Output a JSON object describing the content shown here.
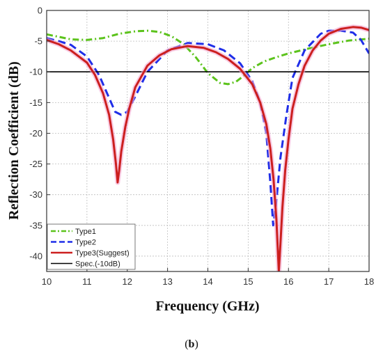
{
  "caption": {
    "open": "(",
    "label": "b",
    "close": ")"
  },
  "chart_data": {
    "type": "line",
    "title": "",
    "xlabel": "Frequency (GHz)",
    "ylabel": "Reflection Coefficient (dB)",
    "xlim": [
      10,
      18
    ],
    "ylim": [
      -42.5,
      0
    ],
    "x_ticks": [
      10,
      11,
      12,
      13,
      14,
      15,
      16,
      17,
      18
    ],
    "y_ticks": [
      0,
      -5,
      -10,
      -15,
      -20,
      -25,
      -30,
      -35,
      -40
    ],
    "grid": true,
    "legend_position": "bottom-left",
    "series": [
      {
        "name": "Type1",
        "color": "#5cc31c",
        "style": "dashdot",
        "x": [
          10,
          10.3,
          10.6,
          11,
          11.4,
          11.8,
          12.2,
          12.5,
          12.8,
          13.1,
          13.4,
          13.7,
          14,
          14.3,
          14.5,
          14.7,
          14.9,
          15.1,
          15.4,
          15.7,
          16,
          16.5,
          17,
          17.5,
          18
        ],
        "y": [
          -3.9,
          -4.3,
          -4.7,
          -4.8,
          -4.5,
          -3.8,
          -3.4,
          -3.3,
          -3.5,
          -4.2,
          -5.5,
          -7.6,
          -10.2,
          -11.8,
          -12,
          -11.6,
          -10.6,
          -9.4,
          -8.3,
          -7.6,
          -7,
          -6.2,
          -5.5,
          -4.9,
          -4.6
        ]
      },
      {
        "name": "Type2",
        "color": "#1f2ee8",
        "style": "dashed",
        "x": [
          10,
          10.3,
          10.6,
          11,
          11.3,
          11.5,
          11.7,
          11.85,
          12,
          12.2,
          12.5,
          13,
          13.5,
          14,
          14.4,
          14.8,
          15.1,
          15.3,
          15.45,
          15.55,
          15.62,
          15.7,
          15.8,
          15.95,
          16.1,
          16.4,
          16.8,
          17,
          17.3,
          17.6,
          17.8,
          18
        ],
        "y": [
          -4.5,
          -5,
          -5.6,
          -7.5,
          -10.5,
          -13.5,
          -16.5,
          -17,
          -16.5,
          -14,
          -10,
          -6.5,
          -5.3,
          -5.5,
          -6.5,
          -8.6,
          -11.5,
          -15,
          -20,
          -28,
          -35,
          -31,
          -24,
          -17,
          -11,
          -6.5,
          -3.8,
          -3.3,
          -3.3,
          -3.6,
          -4.8,
          -7
        ]
      },
      {
        "name": "Type3(Suggest)",
        "color": "#cc1f1f",
        "style": "solid",
        "x": [
          10,
          10.3,
          10.6,
          11,
          11.2,
          11.4,
          11.55,
          11.65,
          11.72,
          11.76,
          11.8,
          11.85,
          11.95,
          12.05,
          12.2,
          12.5,
          12.8,
          13.1,
          13.5,
          13.9,
          14.2,
          14.5,
          14.8,
          15.1,
          15.3,
          15.45,
          15.55,
          15.63,
          15.7,
          15.76,
          15.8,
          15.85,
          15.92,
          16,
          16.1,
          16.25,
          16.4,
          16.6,
          16.8,
          17,
          17.3,
          17.6,
          17.8,
          18
        ],
        "y": [
          -4.8,
          -5.5,
          -6.5,
          -8.5,
          -10.5,
          -13.5,
          -17,
          -21,
          -25,
          -28,
          -26,
          -23,
          -19,
          -16,
          -12.5,
          -9,
          -7.3,
          -6.3,
          -5.8,
          -6.1,
          -6.8,
          -7.9,
          -9.5,
          -12,
          -15,
          -18.5,
          -22.5,
          -27.5,
          -34,
          -42.5,
          -38,
          -32,
          -26,
          -21,
          -16,
          -12,
          -9,
          -6.5,
          -4.9,
          -3.8,
          -3,
          -2.7,
          -2.8,
          -3.2
        ]
      },
      {
        "name": "Spec.(-10dB)",
        "color": "#000000",
        "style": "solid",
        "x": [
          10,
          18
        ],
        "y": [
          -10,
          -10
        ]
      }
    ]
  }
}
